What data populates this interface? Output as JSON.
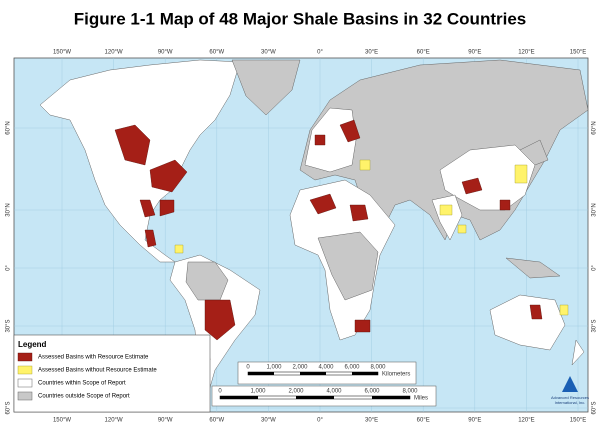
{
  "header": {
    "title": "Figure 1-1  Map of 48 Major Shale Basins in 32 Countries"
  },
  "graticule": {
    "longitudes": [
      "150°W",
      "120°W",
      "90°W",
      "60°W",
      "30°W",
      "0°",
      "30°E",
      "60°E",
      "90°E",
      "120°E",
      "150°E"
    ],
    "latitudes": [
      "60°N",
      "30°N",
      "0°",
      "30°S",
      "60°S"
    ]
  },
  "legend": {
    "title": "Legend",
    "items": [
      "Assessed Basins with Resource Estimate",
      "Assessed Basins without Resource Estimate",
      "Countries within Scope of Report",
      "Countries outside Scope of Report"
    ]
  },
  "scale_bars": [
    {
      "labels": [
        "0",
        "1,000",
        "2,000",
        "4,000",
        "6,000",
        "8,000"
      ],
      "unit": "Kilometers"
    },
    {
      "labels": [
        "0",
        "1,000",
        "2,000",
        "4,000",
        "6,000",
        "8,000"
      ],
      "unit": "Miles"
    }
  ],
  "logo": {
    "name": "Advanced Resources",
    "subname": "International, Inc."
  }
}
